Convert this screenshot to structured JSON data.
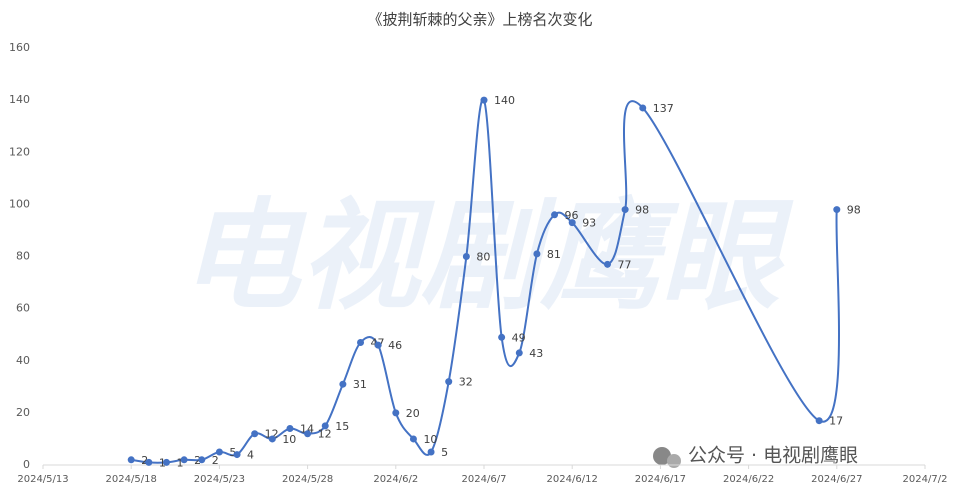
{
  "chart_data": {
    "type": "line",
    "title": "《披荆斩棘的父亲》上榜名次变化",
    "watermark": "公众号 · 电视剧鹰眼",
    "background_watermark": "电视剧鹰眼",
    "series": [
      {
        "name": "上榜名次",
        "color": "#4472c4",
        "x": [
          "2024/5/18",
          "2024/5/19",
          "2024/5/20",
          "2024/5/21",
          "2024/5/22",
          "2024/5/23",
          "2024/5/24",
          "2024/5/25",
          "2024/5/26",
          "2024/5/27",
          "2024/5/28",
          "2024/5/29",
          "2024/5/30",
          "2024/5/31",
          "2024/6/1",
          "2024/6/2",
          "2024/6/3",
          "2024/6/4",
          "2024/6/5",
          "2024/6/6",
          "2024/6/7",
          "2024/6/8",
          "2024/6/9",
          "2024/6/10",
          "2024/6/11",
          "2024/6/12",
          "2024/6/14",
          "2024/6/15",
          "2024/6/16",
          "2024/6/26",
          "2024/6/27"
        ],
        "values": [
          2,
          1,
          1,
          2,
          2,
          5,
          4,
          12,
          10,
          14,
          12,
          15,
          31,
          47,
          46,
          20,
          10,
          5,
          32,
          80,
          140,
          49,
          43,
          81,
          96,
          93,
          77,
          98,
          137,
          17,
          98
        ]
      }
    ],
    "xlim": [
      "2024/5/13",
      "2024/7/2"
    ],
    "xticks": [
      "2024/5/13",
      "2024/5/18",
      "2024/5/23",
      "2024/5/28",
      "2024/6/2",
      "2024/6/7",
      "2024/6/12",
      "2024/6/17",
      "2024/6/22",
      "2024/6/27",
      "2024/7/2"
    ],
    "ylim": [
      0,
      160
    ],
    "yticks": [
      0,
      20,
      40,
      60,
      80,
      100,
      120,
      140,
      160
    ],
    "grid": false
  }
}
